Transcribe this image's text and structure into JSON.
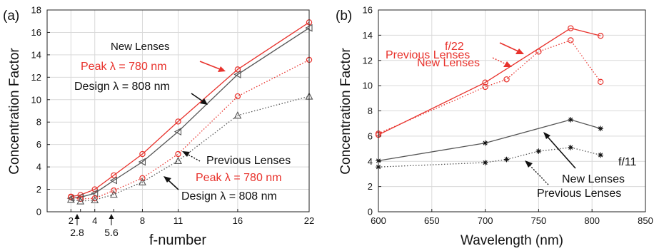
{
  "colors": {
    "red": "#e8322c",
    "black": "#111111",
    "gray": "#555555",
    "axis": "#222222",
    "grid": "#d9d9d9"
  },
  "chart_data": [
    {
      "panel_label": "(a)",
      "type": "line",
      "xlabel": "f-number",
      "ylabel": "Concentration Factor",
      "xlim": [
        0,
        22
      ],
      "ylim": [
        0,
        18
      ],
      "xticks": [
        2,
        4,
        8,
        11,
        16,
        22
      ],
      "yticks": [
        0,
        2,
        4,
        6,
        8,
        10,
        12,
        14,
        16,
        18
      ],
      "extra_ticks": [
        "2.8",
        "5.6"
      ],
      "extra_tick_values": [
        2.8,
        5.6
      ],
      "grid": true,
      "series": [
        {
          "color": "#e8322c",
          "dash": "solid",
          "marker": "circle",
          "x": [
            2,
            2.8,
            4,
            5.6,
            8,
            11,
            16,
            22
          ],
          "y": [
            1.35,
            1.5,
            2.0,
            3.25,
            5.15,
            8.05,
            12.7,
            16.9
          ]
        },
        {
          "color": "#555555",
          "dash": "solid",
          "marker": "triangle-left",
          "x": [
            2,
            2.8,
            4,
            5.6,
            8,
            11,
            16,
            22
          ],
          "y": [
            1.2,
            1.3,
            1.65,
            2.8,
            4.45,
            7.15,
            12.25,
            16.4
          ]
        },
        {
          "color": "#e8322c",
          "dash": "dotted",
          "marker": "circle",
          "x": [
            2,
            2.8,
            4,
            5.6,
            8,
            11,
            16,
            22
          ],
          "y": [
            1.3,
            1.15,
            1.2,
            1.9,
            3.0,
            5.15,
            10.3,
            13.55
          ]
        },
        {
          "color": "#555555",
          "dash": "dotted",
          "marker": "triangle",
          "x": [
            2,
            2.8,
            4,
            5.6,
            8,
            11,
            16,
            22
          ],
          "y": [
            1.1,
            0.95,
            1.05,
            1.55,
            2.65,
            4.55,
            8.6,
            10.3
          ]
        }
      ],
      "annotations": [
        "New Lenses",
        "Peak λ = 780 nm",
        "Design λ = 808 nm",
        "Previous Lenses",
        "Peak λ = 780 nm",
        "Design λ = 808 nm"
      ]
    },
    {
      "panel_label": "(b)",
      "type": "line",
      "xlabel": "Wavelength (nm)",
      "ylabel": "Concentration Factor",
      "xlim": [
        600,
        850
      ],
      "ylim": [
        0,
        16
      ],
      "xticks": [
        600,
        650,
        700,
        750,
        800,
        850
      ],
      "yticks": [
        0,
        2,
        4,
        6,
        8,
        10,
        12,
        14,
        16
      ],
      "grid": true,
      "series": [
        {
          "color": "#e8322c",
          "dash": "solid",
          "marker": "circle",
          "x": [
            600,
            700,
            780,
            808
          ],
          "y": [
            6.1,
            10.25,
            14.55,
            13.95
          ]
        },
        {
          "color": "#e8322c",
          "dash": "dotted",
          "marker": "circle",
          "x": [
            600,
            700,
            720,
            750,
            780,
            808
          ],
          "y": [
            6.2,
            9.9,
            10.5,
            12.7,
            13.6,
            10.3
          ]
        },
        {
          "color": "#555555",
          "dash": "solid",
          "marker": "star",
          "x": [
            600,
            700,
            780,
            808
          ],
          "y": [
            4.05,
            5.45,
            7.3,
            6.6
          ]
        },
        {
          "color": "#555555",
          "dash": "dotted",
          "marker": "star",
          "x": [
            600,
            700,
            720,
            750,
            780,
            808
          ],
          "y": [
            3.55,
            3.9,
            4.15,
            4.8,
            5.1,
            4.5
          ]
        }
      ],
      "annotations": [
        "f/22",
        "New Lenses",
        "Previous Lenses",
        "f/11",
        "New Lenses",
        "Previous Lenses"
      ]
    }
  ]
}
